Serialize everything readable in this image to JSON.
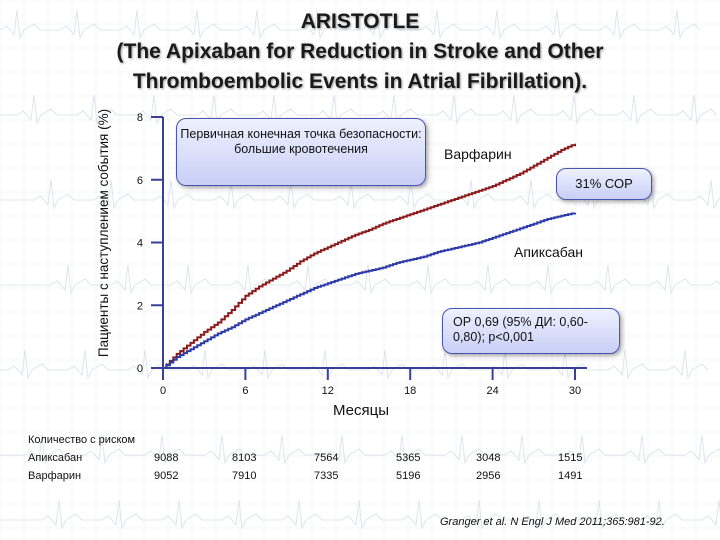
{
  "title_line1": "ARISTOTLE",
  "title_line2": "(The Apixaban for Reduction in Stroke and Other",
  "title_line3": "Thromboembolic Events in Atrial Fibrillation).",
  "endpoint_box": "Первичная конечная точка безопасности: большие кровотечения",
  "warfarin_label": "Варфарин",
  "rrr_box": "31% СОР",
  "apixaban_label": "Апиксабан",
  "hr_box": "ОР 0,69 (95% ДИ: 0,60-0,80); р<0,001",
  "risk_table": {
    "header": "Количество с риском",
    "rows": [
      {
        "name": "Апиксабан",
        "values": [
          "9088",
          "8103",
          "7564",
          "5365",
          "3048",
          "1515"
        ]
      },
      {
        "name": "Варфарин",
        "values": [
          "9052",
          "7910",
          "7335",
          "5196",
          "2956",
          "1491"
        ]
      }
    ]
  },
  "citation": "Granger et al. N Engl J Med 2011;365:981-92.",
  "chart_data": {
    "type": "line",
    "xlabel": "Месяцы",
    "ylabel": "Пациенты с наступлением события (%)",
    "xlim": [
      0,
      30
    ],
    "ylim": [
      0,
      8
    ],
    "xticks": [
      "0",
      "6",
      "12",
      "18",
      "24",
      "30"
    ],
    "yticks": [
      "0",
      "2",
      "4",
      "6",
      "8"
    ],
    "series": [
      {
        "name": "Варфарин",
        "color": "#8b1a1a",
        "x": [
          0,
          1,
          2,
          3,
          4,
          5,
          6,
          7,
          8,
          9,
          10,
          11,
          12,
          13,
          14,
          15,
          16,
          17,
          18,
          19,
          20,
          21,
          22,
          23,
          24,
          25,
          26,
          27,
          28,
          29,
          30
        ],
        "y": [
          0,
          0.45,
          0.8,
          1.15,
          1.45,
          1.85,
          2.3,
          2.6,
          2.85,
          3.1,
          3.4,
          3.65,
          3.85,
          4.05,
          4.25,
          4.4,
          4.6,
          4.75,
          4.9,
          5.05,
          5.2,
          5.35,
          5.5,
          5.65,
          5.8,
          6.0,
          6.2,
          6.45,
          6.7,
          6.95,
          7.15
        ]
      },
      {
        "name": "Апиксабан",
        "color": "#2b3aa8",
        "x": [
          0,
          1,
          2,
          3,
          4,
          5,
          6,
          7,
          8,
          9,
          10,
          11,
          12,
          13,
          14,
          15,
          16,
          17,
          18,
          19,
          20,
          21,
          22,
          23,
          24,
          25,
          26,
          27,
          28,
          29,
          30
        ],
        "y": [
          0,
          0.35,
          0.6,
          0.85,
          1.1,
          1.3,
          1.55,
          1.75,
          1.95,
          2.15,
          2.35,
          2.55,
          2.7,
          2.85,
          3.0,
          3.1,
          3.2,
          3.35,
          3.45,
          3.55,
          3.7,
          3.8,
          3.9,
          4.0,
          4.15,
          4.3,
          4.45,
          4.6,
          4.75,
          4.85,
          4.95
        ]
      }
    ]
  }
}
